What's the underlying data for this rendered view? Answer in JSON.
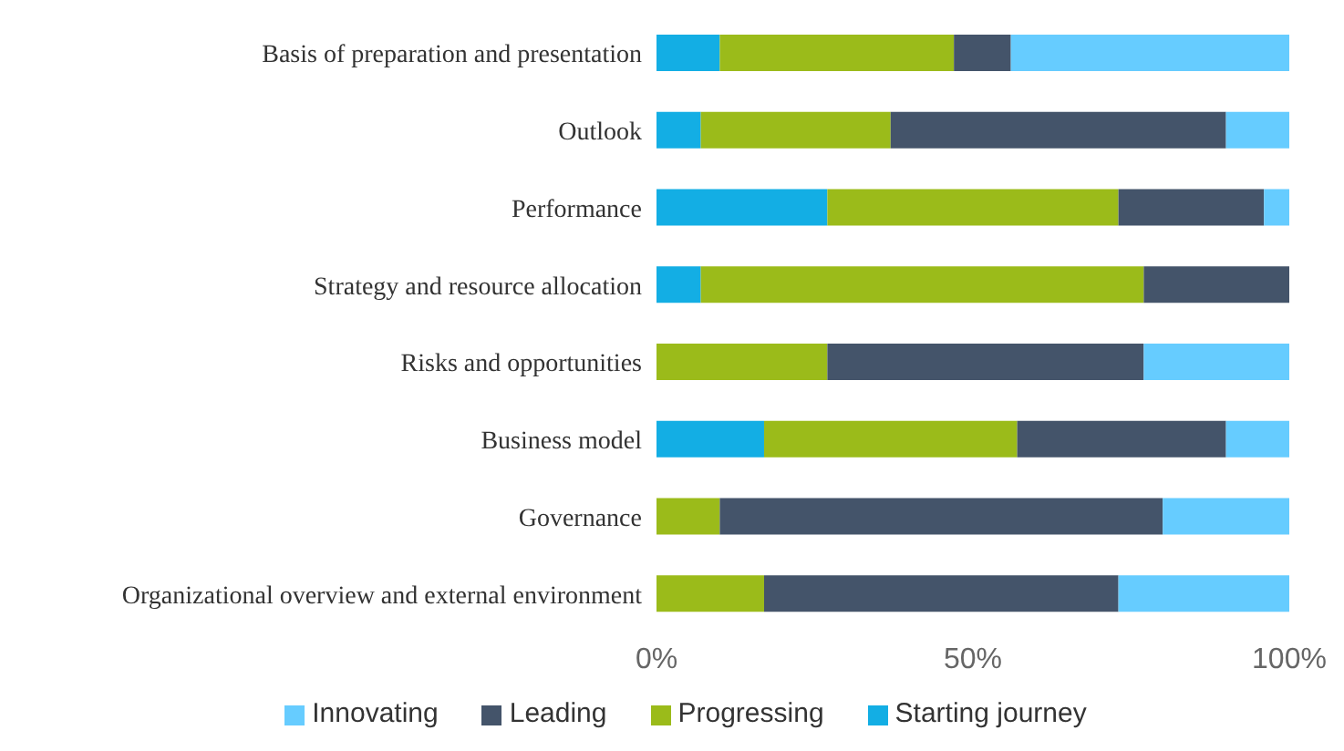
{
  "chart_data": {
    "type": "bar",
    "orientation": "horizontal",
    "stacked": true,
    "categories": [
      "Basis of preparation and presentation",
      "Outlook",
      "Performance",
      "Strategy and resource allocation",
      "Risks and opportunities",
      "Business model",
      "Governance",
      "Organizational overview and external environment"
    ],
    "series": [
      {
        "name": "Starting journey",
        "color": "#13aee4",
        "values": [
          10,
          7,
          27,
          7,
          0,
          17,
          0,
          0
        ]
      },
      {
        "name": "Progressing",
        "color": "#9bbb1a",
        "values": [
          37,
          30,
          46,
          70,
          27,
          40,
          10,
          17
        ]
      },
      {
        "name": "Leading",
        "color": "#44546a",
        "values": [
          9,
          53,
          23,
          23,
          50,
          33,
          70,
          56
        ]
      },
      {
        "name": "Innovating",
        "color": "#66ccff",
        "values": [
          44,
          10,
          4,
          0,
          23,
          10,
          20,
          27
        ]
      }
    ],
    "xlim": [
      0,
      100
    ],
    "xticks": [
      {
        "value": 0,
        "label": "0%"
      },
      {
        "value": 50,
        "label": "50%"
      },
      {
        "value": 100,
        "label": "100%"
      }
    ],
    "grid": false,
    "legend": "bottom"
  }
}
